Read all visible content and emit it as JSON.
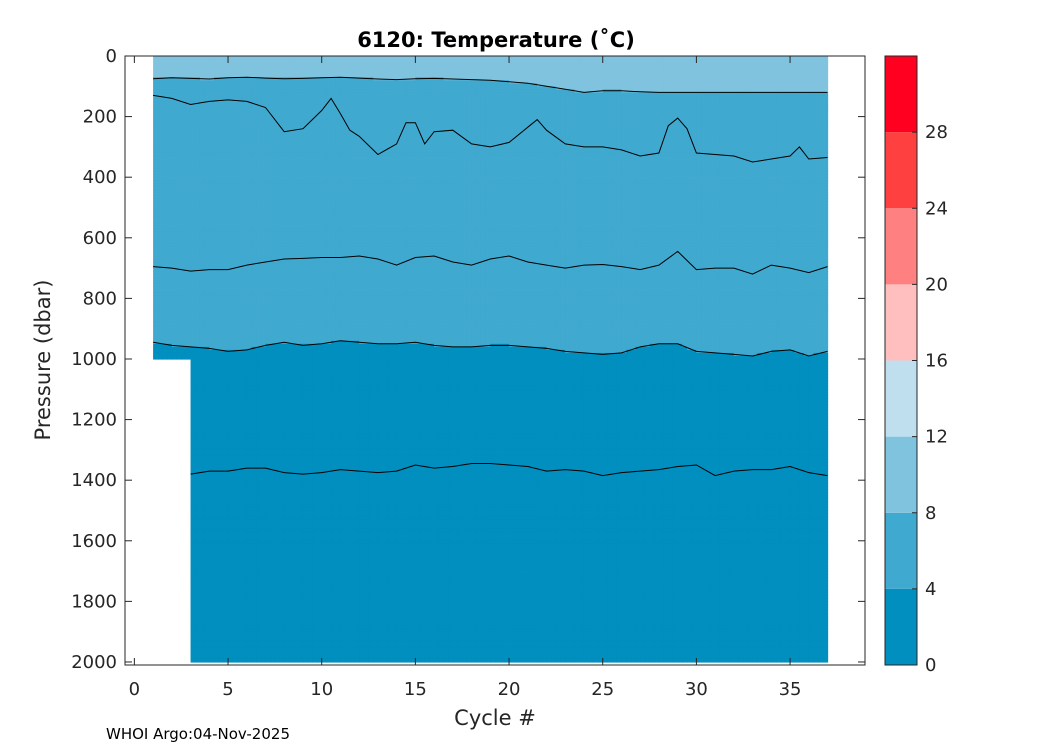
{
  "footer": "WHOI Argo:04-Nov-2025",
  "chart_data": {
    "type": "heatmap",
    "title": "6120:  Temperature (˚C)",
    "xlabel": "Cycle #",
    "ylabel": "Pressure (dbar)",
    "xlim": [
      -0.5,
      39
    ],
    "ylim": [
      2010,
      0
    ],
    "x_ticks": [
      0,
      5,
      10,
      15,
      20,
      25,
      30,
      35
    ],
    "y_ticks": [
      0,
      200,
      400,
      600,
      800,
      1000,
      1200,
      1400,
      1600,
      1800,
      2000
    ],
    "data_extent": {
      "x": [
        1,
        37
      ],
      "pressure": [
        0,
        2000
      ],
      "first_deep_cycle": 3,
      "shallow_only_max_pressure": 1000
    },
    "colorbar": {
      "range": [
        0,
        32
      ],
      "ticks": [
        0,
        4,
        8,
        12,
        16,
        20,
        24,
        28
      ],
      "levels": [
        {
          "min": 0,
          "max": 4,
          "color": "#008fbf"
        },
        {
          "min": 4,
          "max": 8,
          "color": "#40a9cf"
        },
        {
          "min": 8,
          "max": 12,
          "color": "#80c3df"
        },
        {
          "min": 12,
          "max": 16,
          "color": "#bfdfef"
        },
        {
          "min": 16,
          "max": 20,
          "color": "#ffbfbf"
        },
        {
          "min": 20,
          "max": 24,
          "color": "#ff8080"
        },
        {
          "min": 24,
          "max": 28,
          "color": "#ff4040"
        },
        {
          "min": 28,
          "max": 32,
          "color": "#ff0020"
        }
      ]
    },
    "contours": [
      {
        "level": 8,
        "cycles": [
          1,
          2,
          3,
          4,
          5,
          6,
          7,
          8,
          9,
          10,
          11,
          12,
          13,
          14,
          15,
          16,
          17,
          18,
          19,
          20,
          21,
          22,
          23,
          24,
          25,
          26,
          27,
          28,
          29,
          30,
          31,
          32,
          33,
          34,
          35,
          36,
          37
        ],
        "pressure": [
          75,
          72,
          74,
          76,
          72,
          70,
          73,
          75,
          74,
          72,
          70,
          73,
          76,
          78,
          75,
          74,
          76,
          78,
          80,
          85,
          90,
          100,
          110,
          120,
          115,
          115,
          118,
          120,
          120,
          120,
          120,
          120,
          120,
          120,
          120,
          120,
          120
        ]
      },
      {
        "level": 6,
        "cycles": [
          1,
          2,
          3,
          4,
          5,
          6,
          7,
          8,
          9,
          10,
          10.5,
          11,
          11.5,
          12,
          13,
          14,
          14.5,
          15,
          15.5,
          16,
          17,
          18,
          19,
          20,
          21,
          21.5,
          22,
          23,
          24,
          25,
          26,
          27,
          28,
          28.5,
          29,
          29.5,
          30,
          31,
          32,
          33,
          34,
          35,
          35.5,
          36,
          37
        ],
        "pressure": [
          130,
          140,
          160,
          150,
          145,
          150,
          170,
          250,
          240,
          180,
          140,
          190,
          245,
          265,
          325,
          290,
          220,
          220,
          290,
          250,
          245,
          290,
          300,
          285,
          235,
          210,
          245,
          290,
          300,
          300,
          310,
          330,
          320,
          230,
          205,
          240,
          320,
          325,
          330,
          350,
          340,
          330,
          300,
          340,
          335
        ]
      },
      {
        "level": 5,
        "cycles": [
          1,
          2,
          3,
          4,
          5,
          6,
          7,
          8,
          9,
          10,
          11,
          12,
          13,
          14,
          15,
          16,
          17,
          18,
          19,
          20,
          21,
          22,
          23,
          24,
          25,
          26,
          27,
          28,
          29,
          30,
          31,
          32,
          33,
          34,
          35,
          36,
          37
        ],
        "pressure": [
          695,
          700,
          710,
          705,
          705,
          690,
          680,
          670,
          668,
          665,
          665,
          660,
          670,
          690,
          665,
          660,
          680,
          690,
          670,
          660,
          680,
          690,
          700,
          690,
          688,
          695,
          705,
          690,
          645,
          705,
          700,
          700,
          720,
          690,
          700,
          715,
          695
        ]
      },
      {
        "level": 4,
        "cycles": [
          1,
          2,
          3,
          4,
          5,
          6,
          7,
          8,
          9,
          10,
          11,
          12,
          13,
          14,
          15,
          16,
          17,
          18,
          19,
          20,
          21,
          22,
          23,
          24,
          25,
          26,
          27,
          28,
          29,
          30,
          31,
          32,
          33,
          34,
          35,
          36,
          37
        ],
        "pressure": [
          945,
          955,
          960,
          965,
          975,
          970,
          955,
          945,
          955,
          950,
          940,
          945,
          950,
          950,
          945,
          955,
          960,
          960,
          955,
          955,
          960,
          965,
          975,
          980,
          985,
          980,
          960,
          950,
          950,
          975,
          980,
          985,
          990,
          975,
          970,
          990,
          975
        ]
      },
      {
        "level": 3,
        "cycles": [
          3,
          4,
          5,
          6,
          7,
          8,
          9,
          10,
          11,
          12,
          13,
          14,
          15,
          16,
          17,
          18,
          19,
          20,
          21,
          22,
          23,
          24,
          25,
          26,
          27,
          28,
          29,
          30,
          31,
          32,
          33,
          34,
          35,
          36,
          37
        ],
        "pressure": [
          1380,
          1370,
          1370,
          1360,
          1360,
          1375,
          1380,
          1375,
          1365,
          1370,
          1375,
          1370,
          1350,
          1360,
          1355,
          1345,
          1345,
          1350,
          1355,
          1370,
          1365,
          1370,
          1385,
          1375,
          1370,
          1365,
          1355,
          1350,
          1385,
          1370,
          1365,
          1365,
          1355,
          1375,
          1385
        ]
      }
    ]
  }
}
